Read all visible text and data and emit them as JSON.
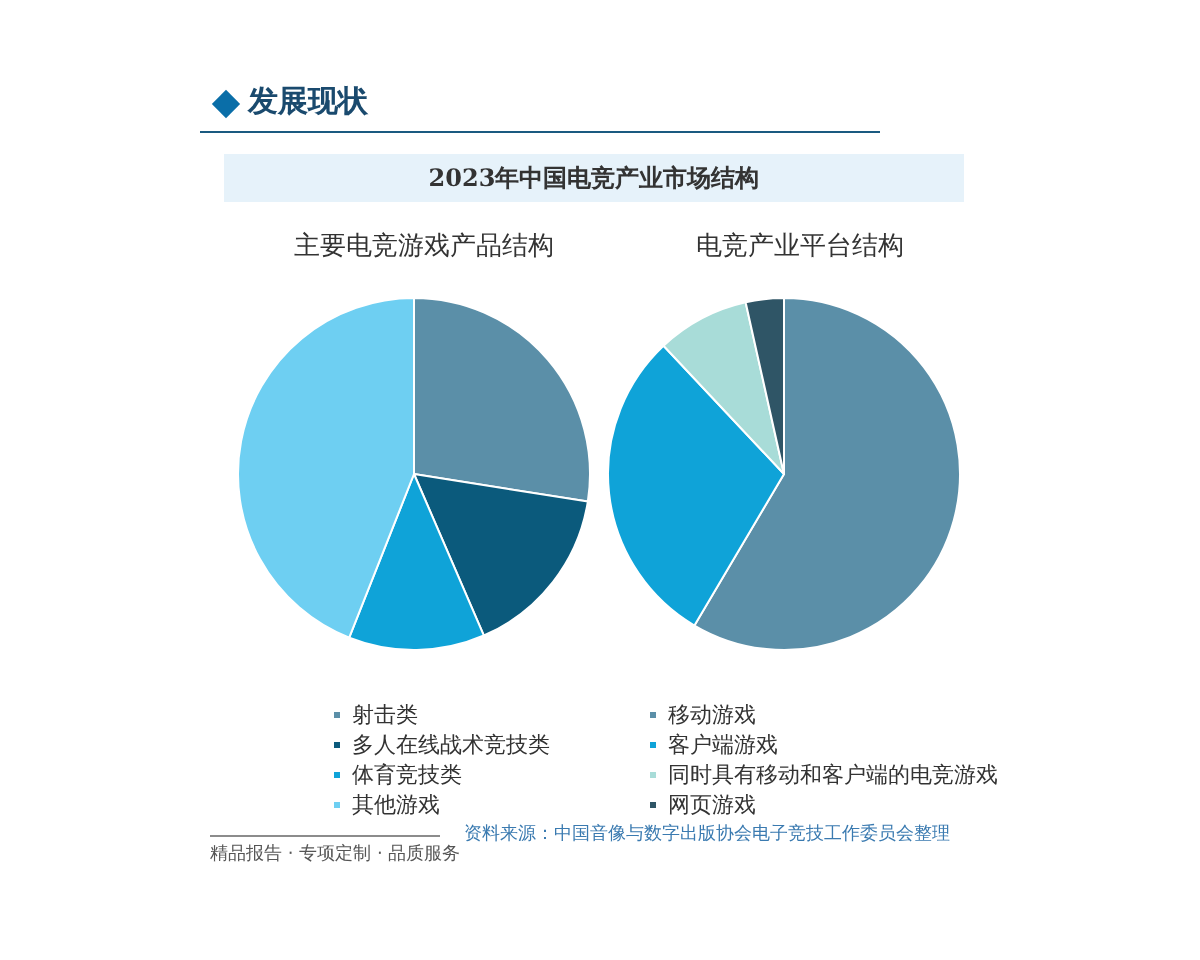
{
  "chart_data": [
    {
      "type": "pie",
      "title": "主要电竞游戏产品结构",
      "categories": [
        "射击类",
        "多人在线战术竞技类",
        "体育竞技类",
        "其他游戏"
      ],
      "values": [
        27.5,
        16,
        12.5,
        44
      ],
      "colors": [
        "#5b8fa8",
        "#0b5a7c",
        "#0fa3d8",
        "#6ecff2"
      ],
      "legend": "bottom",
      "annotations": [
        "发展现状",
        "2023年中国电竞产业市场结构",
        "资料来源：中国音像与数字出版协会电子竞技工作委员会整理",
        "精品报告 · 专项定制 · 品质服务"
      ]
    },
    {
      "type": "pie",
      "title": "电竞产业平台结构",
      "categories": [
        "移动游戏",
        "客户端游戏",
        "同时具有移动和客户端的电竞游戏",
        "网页游戏"
      ],
      "values": [
        58.5,
        29.5,
        8.5,
        3.5
      ],
      "colors": [
        "#5b8fa8",
        "#0fa3d8",
        "#a8dcd8",
        "#2f5566"
      ],
      "legend": "bottom"
    }
  ]
}
